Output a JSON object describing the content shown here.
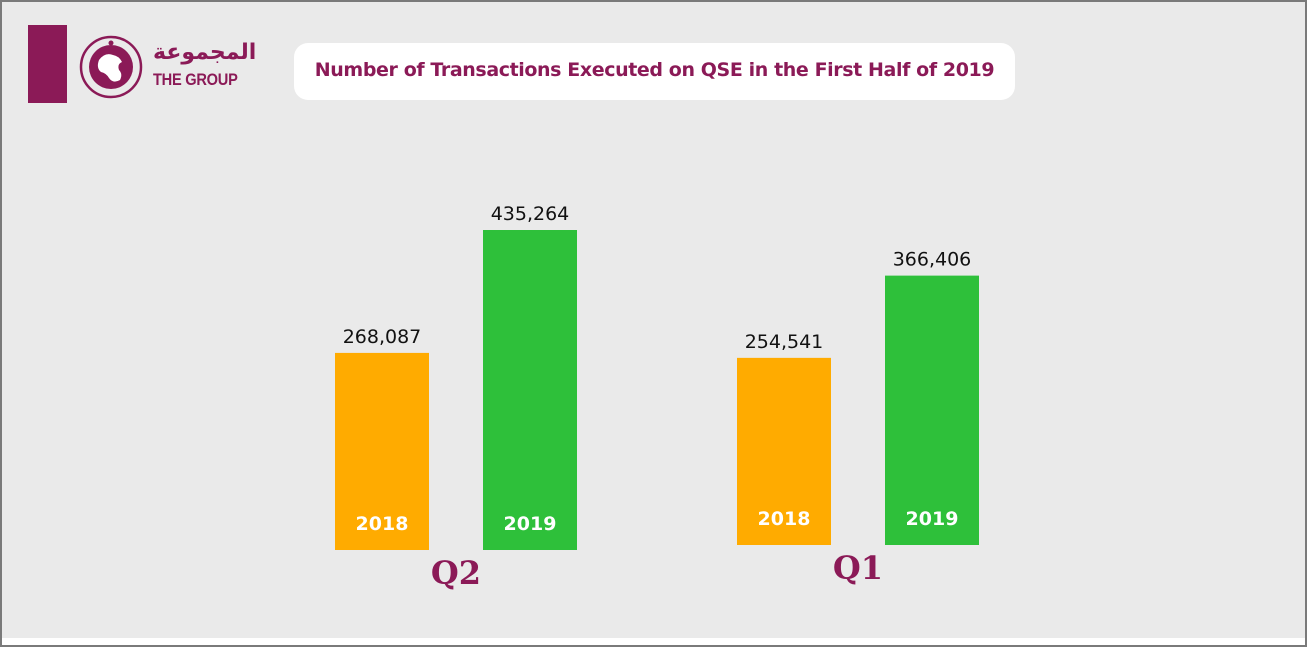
{
  "brand": {
    "name_ar": "المجموعة",
    "name_en": "THE GROUP",
    "color": "#8b1a57",
    "logo_icon": "globe-icon"
  },
  "colors": {
    "background": "#eaeaea",
    "title_text": "#8b1a57",
    "series_2018": "#ffab00",
    "series_2019": "#2ec03a"
  },
  "chart_data": {
    "type": "bar",
    "title": "Number of Transactions Executed on QSE in the First Half of 2019",
    "categories": [
      "Q2",
      "Q1"
    ],
    "series": [
      {
        "name": "2018",
        "values": [
          268087,
          254541
        ]
      },
      {
        "name": "2019",
        "values": [
          435264,
          366406
        ]
      }
    ],
    "data_labels": [
      [
        "268,087",
        "435,264"
      ],
      [
        "254,541",
        "366,406"
      ]
    ],
    "xlabel": "",
    "ylabel": "",
    "ylim": [
      0,
      500000
    ],
    "grid": false,
    "legend": "none"
  }
}
